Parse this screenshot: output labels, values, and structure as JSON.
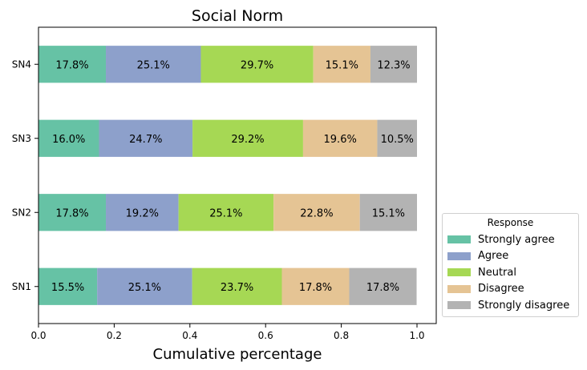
{
  "chart_data": {
    "type": "bar",
    "orientation": "horizontal",
    "stacked": true,
    "title": "Social Norm",
    "xlabel": "Cumulative percentage",
    "ylabel": "",
    "xlim": [
      0,
      1
    ],
    "x_ticks": [
      "0.0",
      "0.2",
      "0.4",
      "0.6",
      "0.8",
      "1.0"
    ],
    "categories": [
      "SN1",
      "SN2",
      "SN3",
      "SN4"
    ],
    "legend": {
      "title": "Response",
      "placement": "lower right, outside plot"
    },
    "grid": false,
    "series": [
      {
        "name": "Strongly agree",
        "color": "#66c2a5",
        "values": [
          0.155,
          0.178,
          0.16,
          0.178
        ],
        "labels": [
          "15.5%",
          "17.8%",
          "16.0%",
          "17.8%"
        ]
      },
      {
        "name": "Agree",
        "color": "#8da0cb",
        "values": [
          0.251,
          0.192,
          0.247,
          0.251
        ],
        "labels": [
          "25.1%",
          "19.2%",
          "24.7%",
          "25.1%"
        ]
      },
      {
        "name": "Neutral",
        "color": "#a6d854",
        "values": [
          0.237,
          0.251,
          0.292,
          0.297
        ],
        "labels": [
          "23.7%",
          "25.1%",
          "29.2%",
          "29.7%"
        ]
      },
      {
        "name": "Disagree",
        "color": "#e5c494",
        "values": [
          0.178,
          0.228,
          0.196,
          0.151
        ],
        "labels": [
          "17.8%",
          "22.8%",
          "19.6%",
          "15.1%"
        ]
      },
      {
        "name": "Strongly disagree",
        "color": "#b3b3b3",
        "values": [
          0.178,
          0.151,
          0.105,
          0.123
        ],
        "labels": [
          "17.8%",
          "15.1%",
          "10.5%",
          "12.3%"
        ]
      }
    ]
  }
}
